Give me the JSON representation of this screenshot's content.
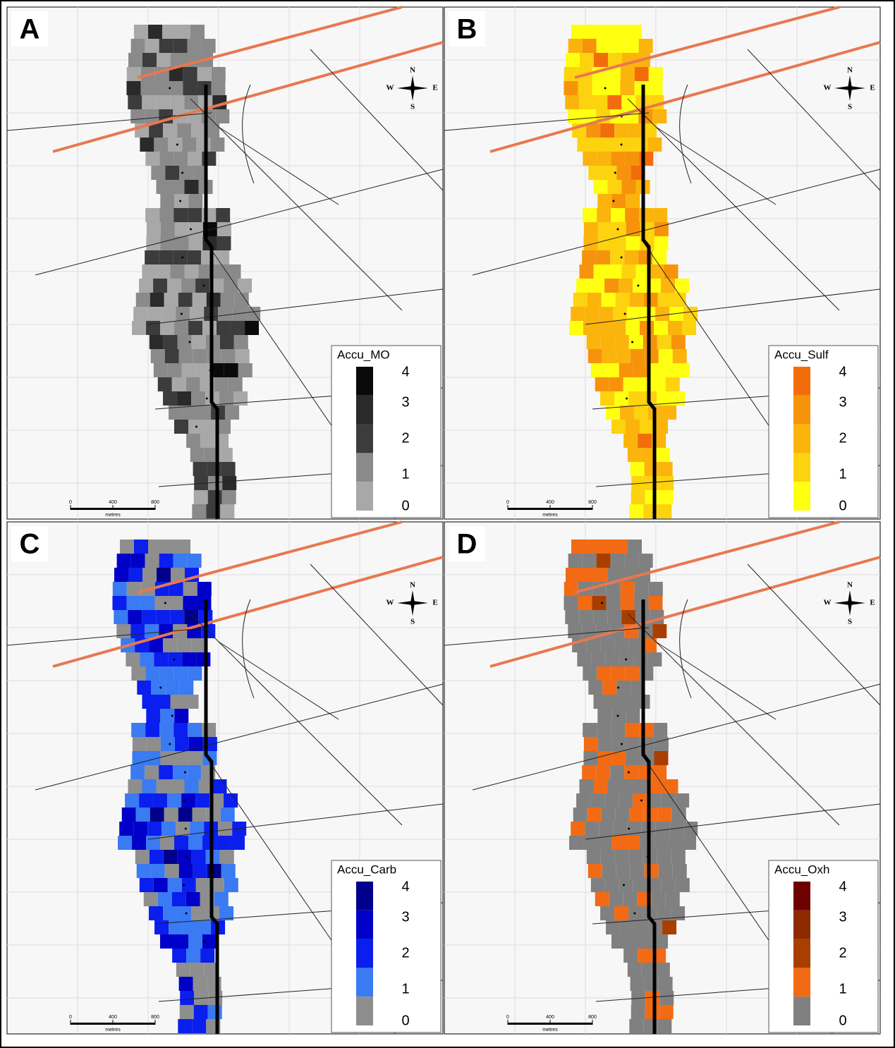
{
  "panels": [
    {
      "label": "A",
      "legend": {
        "title": "Accu_MO",
        "ticks": [
          4,
          3,
          2,
          1,
          0
        ],
        "colors": [
          "#0a0a0a",
          "#2a2a2a",
          "#3c3c3c",
          "#8a8a8a",
          "#a8a8a8"
        ]
      },
      "scale_bar": {
        "ticks": [
          0,
          400,
          800
        ],
        "unit": "metres"
      },
      "compass": [
        "N",
        "S",
        "W",
        "E"
      ]
    },
    {
      "label": "B",
      "legend": {
        "title": "Accu_Sulf",
        "ticks": [
          4,
          3,
          2,
          1,
          0
        ],
        "colors": [
          "#f26d0a",
          "#f7930a",
          "#fbb40c",
          "#fdd20e",
          "#ffff10"
        ]
      },
      "scale_bar": {
        "ticks": [
          0,
          400,
          800
        ],
        "unit": "metres"
      },
      "compass": [
        "N",
        "S",
        "W",
        "E"
      ]
    },
    {
      "label": "C",
      "legend": {
        "title": "Accu_Carb",
        "ticks": [
          4,
          3,
          2,
          1,
          0
        ],
        "colors": [
          "#00008a",
          "#0000c8",
          "#0a1eee",
          "#3a7af2",
          "#8e8e8e"
        ]
      },
      "scale_bar": {
        "ticks": [
          0,
          400,
          800
        ],
        "unit": "metres"
      },
      "compass": [
        "N",
        "S",
        "W",
        "E"
      ]
    },
    {
      "label": "D",
      "legend": {
        "title": "Accu_Oxh",
        "ticks": [
          4,
          3,
          2,
          1,
          0
        ],
        "colors": [
          "#6e0000",
          "#8e2a00",
          "#a83e00",
          "#f26b14",
          "#808080"
        ]
      },
      "scale_bar": {
        "ticks": [
          0,
          400,
          800
        ],
        "unit": "metres"
      },
      "compass": [
        "N",
        "S",
        "W",
        "E"
      ]
    }
  ]
}
